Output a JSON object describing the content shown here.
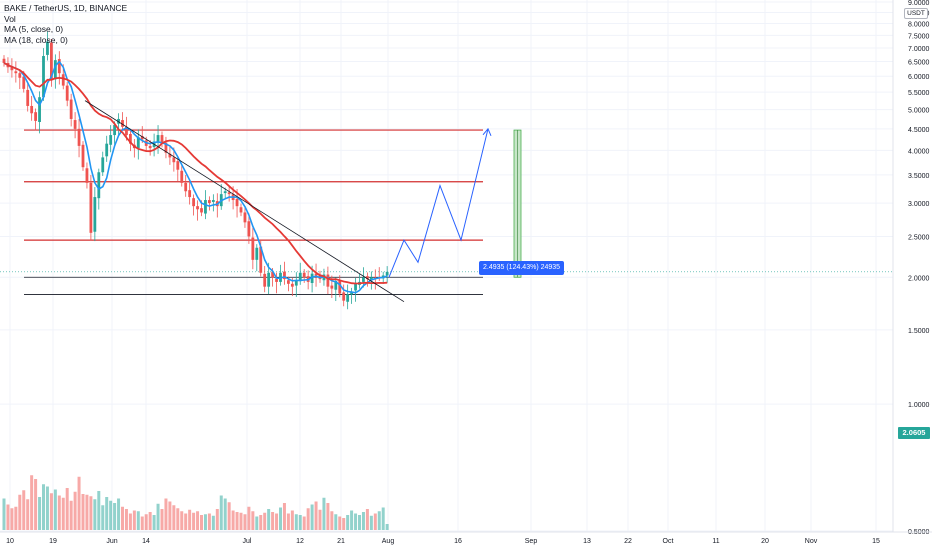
{
  "legend": {
    "symbol": "BAKE / TetherUS, 1D, BINANCE",
    "vol": "Vol",
    "ma5": "MA (5, close, 0)",
    "ma18": "MA (18, close, 0)"
  },
  "price_axis": {
    "currency": "USDT",
    "last_price": "2.0605",
    "ticks": [
      "9.0000",
      "8.5000",
      "8.0000",
      "7.5000",
      "7.0000",
      "6.5000",
      "6.0000",
      "5.5000",
      "5.0000",
      "4.5000",
      "4.0000",
      "3.5000",
      "3.0000",
      "2.5000",
      "2.0000",
      "1.5000",
      "1.0000",
      "0.5000"
    ]
  },
  "time_axis": {
    "labels": [
      "10",
      "19",
      "Jun",
      "14",
      "Jul",
      "12",
      "21",
      "Aug",
      "16",
      "Sep",
      "13",
      "22",
      "Oct",
      "11",
      "20",
      "Nov",
      "15"
    ]
  },
  "measure": {
    "label": "2.4935 (124.43%) 24935"
  },
  "colors": {
    "up": "#26a69a",
    "down": "#ef5350",
    "ma5": "#2196f3",
    "ma18": "#e53935",
    "level": "#d32f2f",
    "trend": "#131722",
    "projection": "#2962ff"
  },
  "chart_data": {
    "type": "candlestick",
    "title": "BAKE / TetherUS, 1D, BINANCE",
    "ylim": [
      0.5,
      9.0
    ],
    "y_scale": "log",
    "grid": true,
    "legend_position": "top-left",
    "series": [
      {
        "name": "Vol",
        "type": "bar"
      },
      {
        "name": "MA (5, close, 0)",
        "type": "line"
      },
      {
        "name": "MA (18, close, 0)",
        "type": "line"
      }
    ],
    "close_prices": [
      6.45,
      6.3,
      6.2,
      6.1,
      5.95,
      5.6,
      5.1,
      4.9,
      4.7,
      5.35,
      6.7,
      7.25,
      5.9,
      6.55,
      6.1,
      5.7,
      5.25,
      4.75,
      4.5,
      4.1,
      3.65,
      3.35,
      2.55,
      3.1,
      3.55,
      3.85,
      4.15,
      4.35,
      4.6,
      4.75,
      4.55,
      4.35,
      4.15,
      4.05,
      4.3,
      4.25,
      4.1,
      4.05,
      4.2,
      4.35,
      4.15,
      3.95,
      3.85,
      3.75,
      3.6,
      3.35,
      3.2,
      3.1,
      2.95,
      2.9,
      2.85,
      3.05,
      3.0,
      3.05,
      2.95,
      3.15,
      3.2,
      3.15,
      3.05,
      2.95,
      2.85,
      2.7,
      2.5,
      2.2,
      2.35,
      2.05,
      1.9,
      2.05,
      2.0,
      1.95,
      2.05,
      1.98,
      1.93,
      1.9,
      1.97,
      2.05,
      2.0,
      1.95,
      2.04,
      2.02,
      1.98,
      2.03,
      1.9,
      1.88,
      1.96,
      1.83,
      1.76,
      1.82,
      1.85,
      1.93,
      1.95,
      2.0,
      1.98,
      2.0,
      1.99,
      2.0,
      2.02,
      2.06
    ],
    "volumes": [
      0.42,
      0.34,
      0.29,
      0.31,
      0.47,
      0.53,
      0.41,
      0.73,
      0.68,
      0.44,
      0.61,
      0.58,
      0.49,
      0.54,
      0.46,
      0.43,
      0.56,
      0.39,
      0.51,
      0.71,
      0.48,
      0.47,
      0.45,
      0.41,
      0.52,
      0.33,
      0.44,
      0.39,
      0.36,
      0.42,
      0.31,
      0.28,
      0.22,
      0.26,
      0.25,
      0.18,
      0.21,
      0.24,
      0.2,
      0.35,
      0.28,
      0.42,
      0.38,
      0.33,
      0.29,
      0.25,
      0.22,
      0.27,
      0.23,
      0.25,
      0.2,
      0.21,
      0.22,
      0.19,
      0.28,
      0.46,
      0.42,
      0.37,
      0.26,
      0.24,
      0.23,
      0.21,
      0.31,
      0.25,
      0.18,
      0.2,
      0.23,
      0.28,
      0.24,
      0.22,
      0.3,
      0.36,
      0.22,
      0.26,
      0.21,
      0.2,
      0.18,
      0.29,
      0.34,
      0.38,
      0.27,
      0.43,
      0.36,
      0.25,
      0.21,
      0.18,
      0.16,
      0.2,
      0.26,
      0.22,
      0.2,
      0.24,
      0.28,
      0.19,
      0.22,
      0.25,
      0.3,
      0.08
    ],
    "horizontal_levels": [
      4.47,
      3.37,
      2.45,
      2.0,
      1.82
    ],
    "trendline": [
      {
        "x": 0.24,
        "y": 5.25
      },
      {
        "x": 0.97,
        "y": 1.75
      }
    ],
    "projection_path": [
      2.0,
      2.45,
      2.17,
      3.3,
      2.45,
      4.5
    ]
  }
}
